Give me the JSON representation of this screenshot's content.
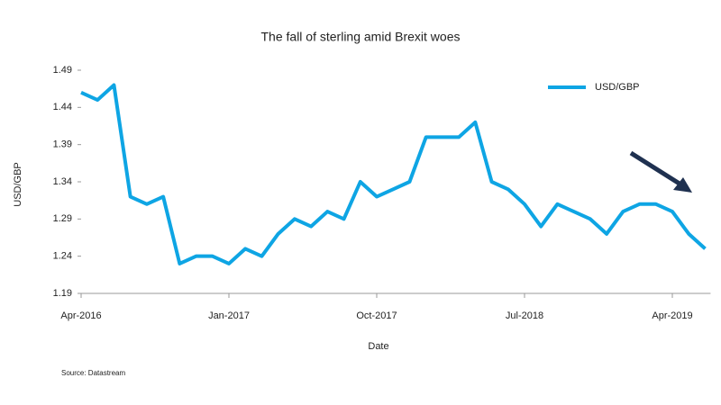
{
  "chart_data": {
    "type": "line",
    "title": "The fall of sterling amid Brexit woes",
    "xlabel": "Date",
    "ylabel": "USD/GBP",
    "source": "Source: Datastream",
    "x": [
      "2016-04",
      "2016-05",
      "2016-06",
      "2016-07",
      "2016-08",
      "2016-09",
      "2016-10",
      "2016-11",
      "2016-12",
      "2017-01",
      "2017-02",
      "2017-03",
      "2017-04",
      "2017-05",
      "2017-06",
      "2017-07",
      "2017-08",
      "2017-09",
      "2017-10",
      "2017-11",
      "2017-12",
      "2018-01",
      "2018-02",
      "2018-03",
      "2018-04",
      "2018-05",
      "2018-06",
      "2018-07",
      "2018-08",
      "2018-09",
      "2018-10",
      "2018-11",
      "2018-12",
      "2019-01",
      "2019-02",
      "2019-03",
      "2019-04",
      "2019-05",
      "2019-06"
    ],
    "series": [
      {
        "name": "USD/GBP",
        "color": "#0ea5e4",
        "values": [
          1.46,
          1.45,
          1.47,
          1.32,
          1.31,
          1.32,
          1.23,
          1.24,
          1.24,
          1.23,
          1.25,
          1.24,
          1.27,
          1.29,
          1.28,
          1.3,
          1.29,
          1.34,
          1.32,
          1.33,
          1.34,
          1.4,
          1.4,
          1.4,
          1.42,
          1.34,
          1.33,
          1.31,
          1.28,
          1.31,
          1.3,
          1.29,
          1.27,
          1.3,
          1.31,
          1.31,
          1.3,
          1.27,
          1.25
        ]
      }
    ],
    "xticks": [
      {
        "value": "2016-04",
        "label": "Apr-2016"
      },
      {
        "value": "2017-01",
        "label": "Jan-2017"
      },
      {
        "value": "2017-10",
        "label": "Oct-2017"
      },
      {
        "value": "2018-07",
        "label": "Jul-2018"
      },
      {
        "value": "2019-04",
        "label": "Apr-2019"
      }
    ],
    "ylim": [
      1.19,
      1.49
    ],
    "yticks": [
      1.19,
      1.24,
      1.29,
      1.34,
      1.39,
      1.44,
      1.49
    ],
    "grid": false,
    "legend": "upper right"
  }
}
